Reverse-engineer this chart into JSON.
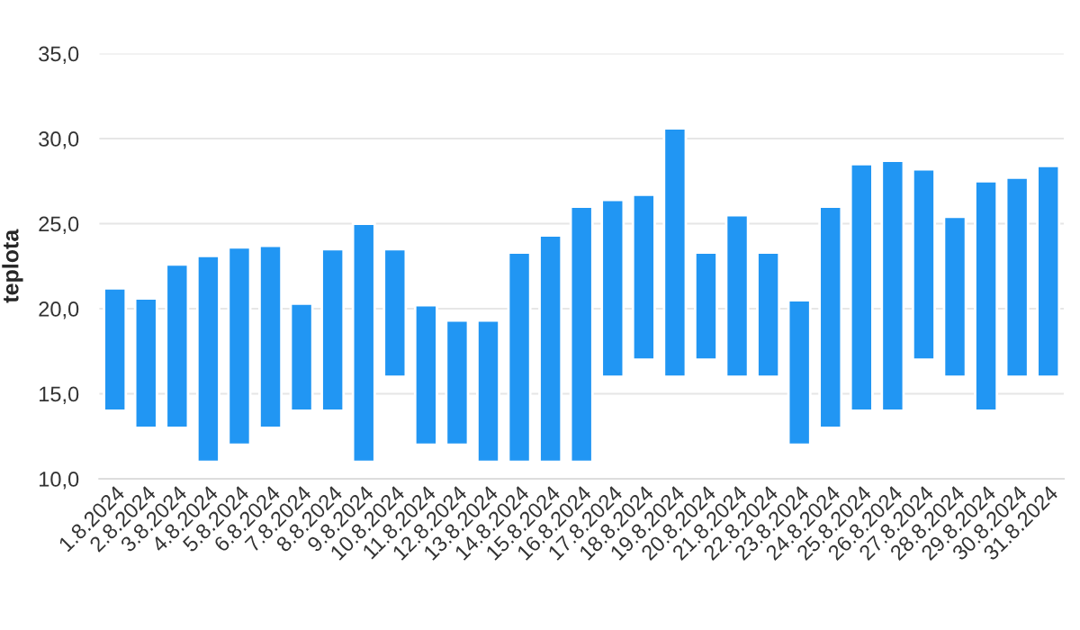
{
  "chart_data": {
    "type": "bar",
    "ylabel": "teplota",
    "categories": [
      "1.8.2024",
      "2.8.2024",
      "3.8.2024",
      "4.8.2024",
      "5.8.2024",
      "6.8.2024",
      "7.8.2024",
      "8.8.2024",
      "9.8.2024",
      "10.8.2024",
      "11.8.2024",
      "12.8.2024",
      "13.8.2024",
      "14.8.2024",
      "15.8.2024",
      "16.8.2024",
      "17.8.2024",
      "18.8.2024",
      "19.8.2024",
      "20.8.2024",
      "21.8.2024",
      "22.8.2024",
      "23.8.2024",
      "24.8.2024",
      "25.8.2024",
      "26.8.2024",
      "27.8.2024",
      "28.8.2024",
      "29.8.2024",
      "30.8.2024",
      "31.8.2024"
    ],
    "base": [
      14,
      13,
      13,
      11,
      12,
      13,
      14,
      14,
      11,
      16,
      12,
      12,
      11,
      11,
      11,
      11,
      16,
      17,
      16,
      17,
      16,
      16,
      12,
      13,
      14,
      14,
      17,
      16,
      14,
      16,
      16
    ],
    "values": [
      7.2,
      7.6,
      9.6,
      12.1,
      11.6,
      10.7,
      6.3,
      9.5,
      14.0,
      7.5,
      8.2,
      7.3,
      8.3,
      12.3,
      13.3,
      15.0,
      10.4,
      9.7,
      14.6,
      6.3,
      9.5,
      7.3,
      8.5,
      13.0,
      14.5,
      14.7,
      11.2,
      9.4,
      13.5,
      11.7,
      12.4
    ],
    "color": "#2196f3",
    "ylim": [
      10,
      35
    ],
    "yticks": [
      {
        "value": 10,
        "label": "10,0"
      },
      {
        "value": 15,
        "label": "15,0"
      },
      {
        "value": 20,
        "label": "20,0"
      },
      {
        "value": 25,
        "label": "25,0"
      },
      {
        "value": 30,
        "label": "30,0"
      },
      {
        "value": 35,
        "label": "35,0"
      }
    ],
    "grid": "y"
  }
}
